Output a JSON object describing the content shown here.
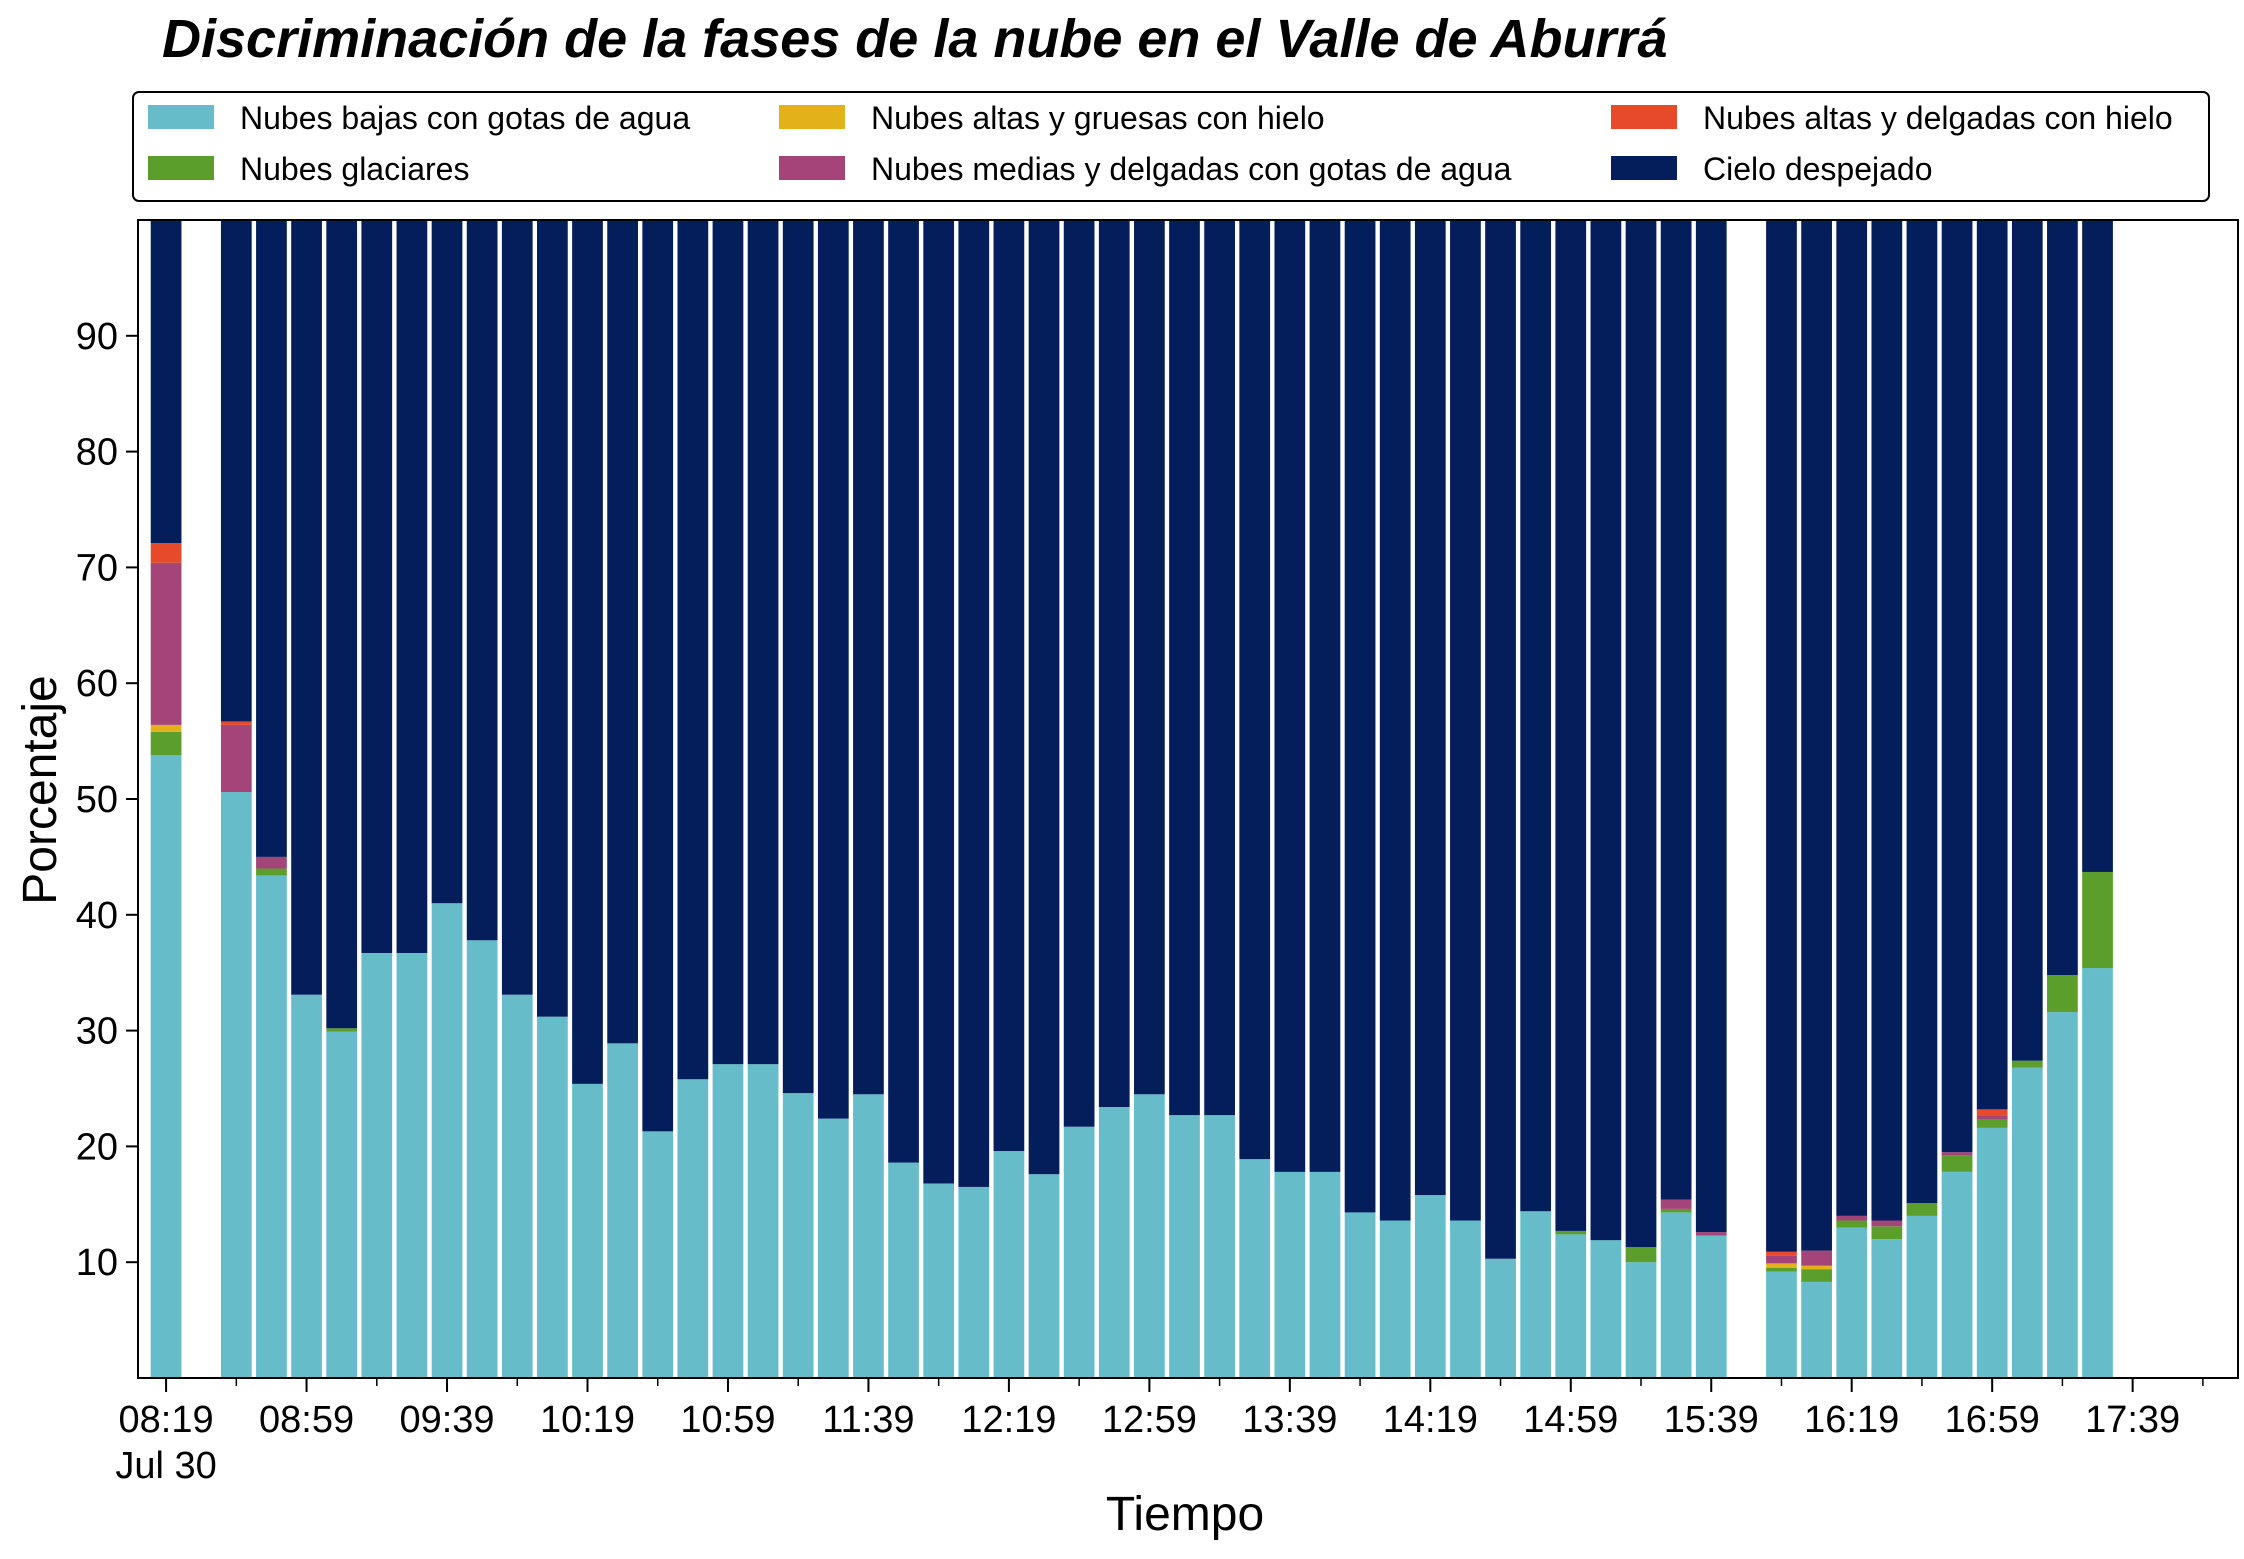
{
  "chart_data": {
    "type": "bar",
    "stacked": true,
    "title": "Discriminación de la fases de la nube en el Valle de Aburrá",
    "xlabel": "Tiempo",
    "ylabel": "Porcentaje",
    "ylim": [
      0,
      100
    ],
    "yticks": [
      10,
      20,
      30,
      40,
      50,
      60,
      70,
      80,
      90
    ],
    "xlim": [
      "08:11",
      "18:09"
    ],
    "bar_interval_minutes": 10,
    "x_tick_labels": [
      {
        "time": "08:19",
        "label": "08:19",
        "sublabel": "Jul 30"
      },
      {
        "time": "08:59",
        "label": "08:59"
      },
      {
        "time": "09:39",
        "label": "09:39"
      },
      {
        "time": "10:19",
        "label": "10:19"
      },
      {
        "time": "10:59",
        "label": "10:59"
      },
      {
        "time": "11:39",
        "label": "11:39"
      },
      {
        "time": "12:19",
        "label": "12:19"
      },
      {
        "time": "12:59",
        "label": "12:59"
      },
      {
        "time": "13:39",
        "label": "13:39"
      },
      {
        "time": "14:19",
        "label": "14:19"
      },
      {
        "time": "14:59",
        "label": "14:59"
      },
      {
        "time": "15:39",
        "label": "15:39"
      },
      {
        "time": "16:19",
        "label": "16:19"
      },
      {
        "time": "16:59",
        "label": "16:59"
      },
      {
        "time": "17:39",
        "label": "17:39"
      }
    ],
    "legend_position": "top, above plot, 3 columns",
    "grid": false,
    "x": [
      "08:19",
      "08:39",
      "08:49",
      "08:59",
      "09:09",
      "09:19",
      "09:29",
      "09:39",
      "09:49",
      "09:59",
      "10:09",
      "10:19",
      "10:29",
      "10:39",
      "10:49",
      "10:59",
      "11:09",
      "11:19",
      "11:29",
      "11:39",
      "11:49",
      "11:59",
      "12:09",
      "12:19",
      "12:29",
      "12:39",
      "12:49",
      "12:59",
      "13:09",
      "13:19",
      "13:29",
      "13:39",
      "13:49",
      "13:59",
      "14:09",
      "14:19",
      "14:29",
      "14:39",
      "14:49",
      "14:59",
      "15:09",
      "15:19",
      "15:29",
      "15:39",
      "15:59",
      "16:09",
      "16:19",
      "16:29",
      "16:39",
      "16:49",
      "16:59",
      "17:09",
      "17:19",
      "17:29"
    ],
    "series": [
      {
        "name": "Nubes bajas con gotas de agua",
        "color": "#66bdc9",
        "values": [
          53.8,
          50.6,
          43.4,
          33.1,
          29.9,
          36.7,
          36.7,
          41.0,
          37.8,
          33.1,
          31.2,
          25.4,
          28.9,
          21.3,
          25.8,
          27.1,
          27.1,
          24.6,
          22.4,
          24.5,
          18.6,
          16.8,
          16.5,
          19.6,
          17.6,
          21.7,
          23.4,
          24.5,
          22.7,
          22.7,
          18.9,
          17.8,
          17.8,
          14.3,
          13.6,
          15.8,
          13.6,
          10.3,
          14.4,
          12.4,
          11.9,
          10.0,
          14.3,
          12.3,
          9.2,
          8.3,
          13.0,
          12.0,
          14.0,
          17.8,
          21.6,
          26.8,
          31.6,
          35.4
        ]
      },
      {
        "name": "Nubes glaciares",
        "color": "#5c9e2c",
        "values": [
          2.0,
          0,
          0.6,
          0,
          0.3,
          0,
          0,
          0,
          0,
          0,
          0,
          0,
          0,
          0,
          0,
          0,
          0,
          0,
          0,
          0,
          0,
          0,
          0,
          0,
          0,
          0,
          0,
          0,
          0,
          0,
          0,
          0,
          0,
          0,
          0,
          0,
          0,
          0,
          0,
          0.3,
          0,
          1.3,
          0.3,
          0,
          0.3,
          1.1,
          0.6,
          1.1,
          1.1,
          1.4,
          0.7,
          0.6,
          3.2,
          8.3
        ]
      },
      {
        "name": "Nubes altas y gruesas con hielo",
        "color": "#e3b21a",
        "values": [
          0.6,
          0,
          0,
          0,
          0,
          0,
          0,
          0,
          0,
          0,
          0,
          0,
          0,
          0,
          0,
          0,
          0,
          0,
          0,
          0,
          0,
          0,
          0,
          0,
          0,
          0,
          0,
          0,
          0,
          0,
          0,
          0,
          0,
          0,
          0,
          0,
          0,
          0,
          0,
          0,
          0,
          0,
          0,
          0,
          0.4,
          0.3,
          0,
          0,
          0,
          0,
          0,
          0,
          0,
          0
        ]
      },
      {
        "name": "Nubes medias y delgadas con gotas de agua",
        "color": "#a44479",
        "values": [
          14.0,
          5.8,
          1.0,
          0,
          0,
          0,
          0,
          0,
          0,
          0,
          0,
          0,
          0,
          0,
          0,
          0,
          0,
          0,
          0,
          0,
          0,
          0,
          0,
          0,
          0,
          0,
          0,
          0,
          0,
          0,
          0,
          0,
          0,
          0,
          0,
          0,
          0,
          0,
          0,
          0,
          0,
          0,
          0.8,
          0.3,
          0.7,
          1.3,
          0.4,
          0.5,
          0,
          0.3,
          0.4,
          0,
          0,
          0
        ]
      },
      {
        "name": "Nubes altas y delgadas con hielo",
        "color": "#e64a2a",
        "values": [
          1.7,
          0.3,
          0,
          0,
          0,
          0,
          0,
          0,
          0,
          0,
          0,
          0,
          0,
          0,
          0,
          0,
          0,
          0,
          0,
          0,
          0,
          0,
          0,
          0,
          0,
          0,
          0,
          0,
          0,
          0,
          0,
          0,
          0,
          0,
          0,
          0,
          0,
          0,
          0,
          0,
          0,
          0,
          0,
          0,
          0.3,
          0,
          0,
          0,
          0,
          0,
          0.5,
          0,
          0,
          0
        ]
      },
      {
        "name": "Cielo despejado",
        "color": "#041e5b",
        "values": [
          27.9,
          43.3,
          55.0,
          66.9,
          69.8,
          63.3,
          63.3,
          59.0,
          62.2,
          66.9,
          68.8,
          74.6,
          71.1,
          78.7,
          74.2,
          72.9,
          72.9,
          75.4,
          77.6,
          75.5,
          81.4,
          83.2,
          83.5,
          80.4,
          82.4,
          78.3,
          76.6,
          75.5,
          77.3,
          77.3,
          81.1,
          82.2,
          82.2,
          85.7,
          86.4,
          84.2,
          86.4,
          89.7,
          85.6,
          87.3,
          88.1,
          88.7,
          84.6,
          87.4,
          89.1,
          89.0,
          86.0,
          86.4,
          84.9,
          80.5,
          76.8,
          72.6,
          65.2,
          56.3
        ]
      }
    ]
  }
}
